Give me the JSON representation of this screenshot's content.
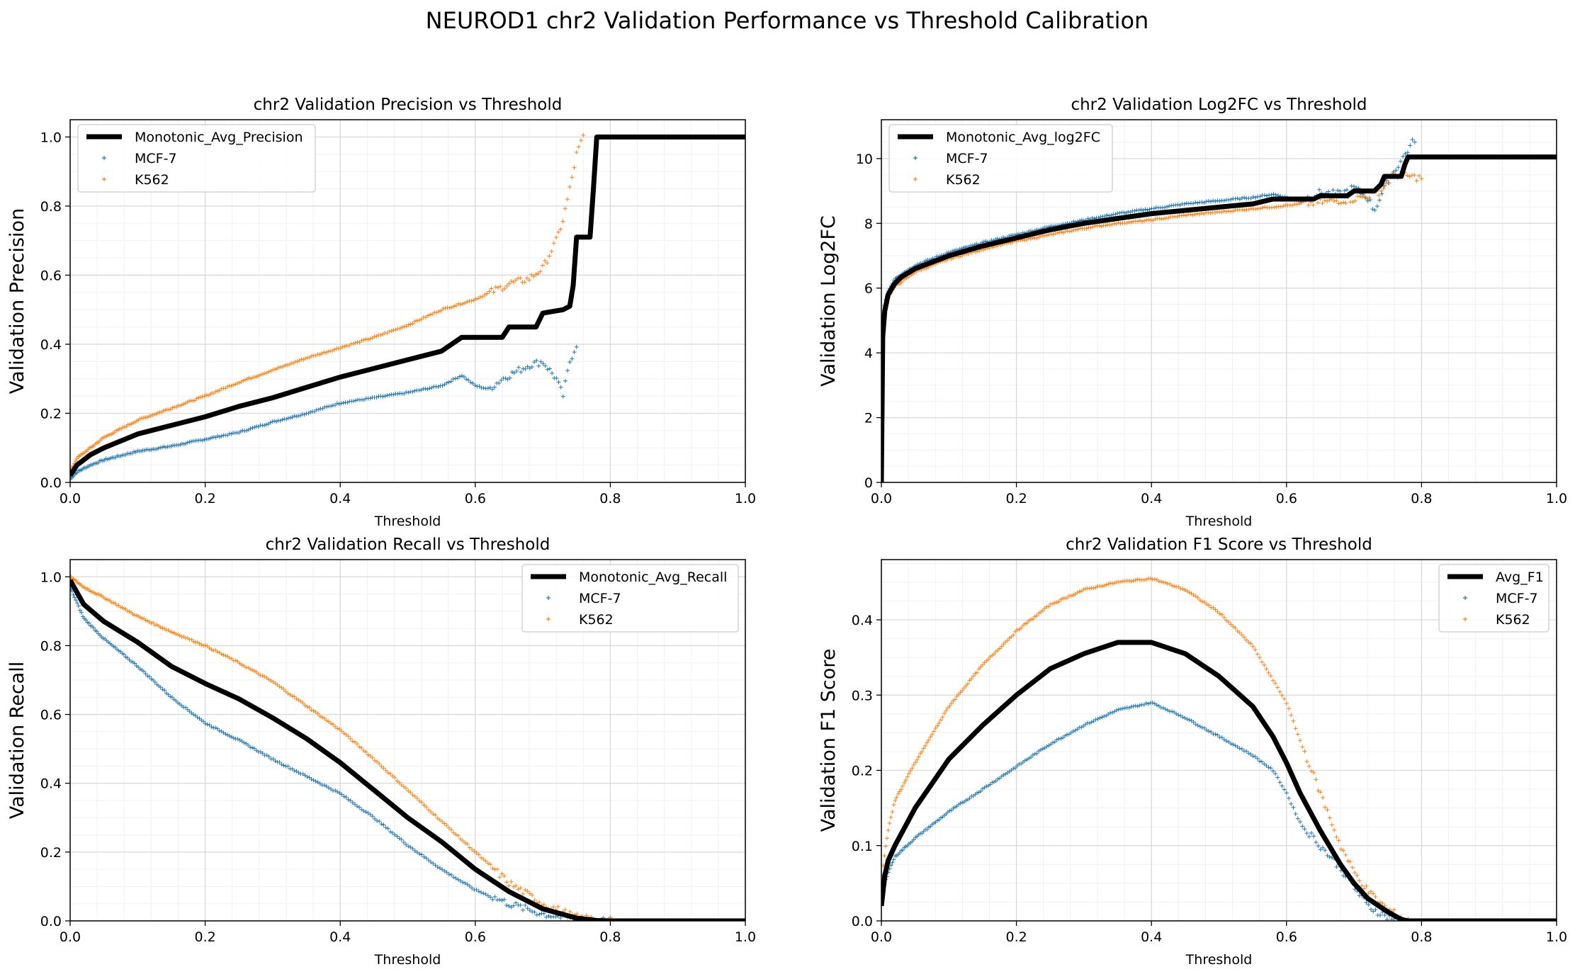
{
  "figure_title": "NEUROD1 chr2 Validation Performance vs Threshold Calibration",
  "colors": {
    "avg": "#000000",
    "MCF-7": "#1f77b4",
    "K562": "#ff7f0e",
    "grid": "#d9d9d9"
  },
  "chart_data": [
    {
      "type": "line",
      "title": "chr2 Validation Precision vs Threshold",
      "xlabel": "Threshold",
      "ylabel": "Validation Precision",
      "xlim": [
        0,
        1
      ],
      "ylim": [
        0,
        1.05
      ],
      "xticks": [
        "0.0",
        "0.2",
        "0.4",
        "0.6",
        "0.8",
        "1.0"
      ],
      "yticks": [
        "0.0",
        "0.2",
        "0.4",
        "0.6",
        "0.8",
        "1.0"
      ],
      "grid": true,
      "legend_position": "upper-left",
      "series": [
        {
          "name": "Monotonic_Avg_Precision",
          "style": "line",
          "x": [
            0,
            0.01,
            0.03,
            0.05,
            0.1,
            0.15,
            0.2,
            0.25,
            0.3,
            0.35,
            0.4,
            0.45,
            0.5,
            0.55,
            0.58,
            0.64,
            0.65,
            0.69,
            0.7,
            0.73,
            0.74,
            0.745,
            0.75,
            0.77,
            0.775,
            0.78,
            0.8,
            0.9,
            1.0
          ],
          "y": [
            0.02,
            0.05,
            0.08,
            0.1,
            0.14,
            0.165,
            0.19,
            0.22,
            0.245,
            0.275,
            0.305,
            0.33,
            0.355,
            0.38,
            0.42,
            0.42,
            0.45,
            0.45,
            0.49,
            0.5,
            0.51,
            0.57,
            0.71,
            0.71,
            0.85,
            1.0,
            1.0,
            1.0,
            1.0
          ]
        },
        {
          "name": "MCF-7",
          "style": "scatter",
          "x": [
            0,
            0.01,
            0.03,
            0.05,
            0.1,
            0.15,
            0.2,
            0.25,
            0.3,
            0.35,
            0.4,
            0.45,
            0.5,
            0.55,
            0.58,
            0.6,
            0.62,
            0.64,
            0.66,
            0.68,
            0.7,
            0.72,
            0.73,
            0.74,
            0.75
          ],
          "y": [
            0.01,
            0.03,
            0.05,
            0.065,
            0.09,
            0.105,
            0.125,
            0.145,
            0.175,
            0.2,
            0.23,
            0.245,
            0.26,
            0.28,
            0.31,
            0.28,
            0.27,
            0.3,
            0.32,
            0.34,
            0.35,
            0.3,
            0.25,
            0.35,
            0.4
          ]
        },
        {
          "name": "K562",
          "style": "scatter",
          "x": [
            0,
            0.01,
            0.03,
            0.05,
            0.1,
            0.15,
            0.2,
            0.25,
            0.3,
            0.35,
            0.4,
            0.45,
            0.5,
            0.55,
            0.6,
            0.65,
            0.68,
            0.7,
            0.71,
            0.72,
            0.73,
            0.74,
            0.745,
            0.75,
            0.76
          ],
          "y": [
            0.03,
            0.07,
            0.1,
            0.13,
            0.18,
            0.215,
            0.25,
            0.29,
            0.325,
            0.36,
            0.39,
            0.42,
            0.455,
            0.5,
            0.53,
            0.575,
            0.59,
            0.62,
            0.66,
            0.7,
            0.76,
            0.85,
            0.9,
            0.95,
            1.0
          ]
        }
      ]
    },
    {
      "type": "line",
      "title": "chr2 Validation Log2FC vs Threshold",
      "xlabel": "Threshold",
      "ylabel": "Validation Log2FC",
      "xlim": [
        0,
        1
      ],
      "ylim": [
        0,
        11.2
      ],
      "xticks": [
        "0.0",
        "0.2",
        "0.4",
        "0.6",
        "0.8",
        "1.0"
      ],
      "yticks": [
        "0",
        "2",
        "4",
        "6",
        "8",
        "10"
      ],
      "grid": true,
      "legend_position": "upper-left",
      "series": [
        {
          "name": "Monotonic_Avg_log2FC",
          "style": "line",
          "x": [
            0,
            0.002,
            0.005,
            0.01,
            0.02,
            0.03,
            0.05,
            0.1,
            0.15,
            0.2,
            0.25,
            0.3,
            0.35,
            0.4,
            0.45,
            0.5,
            0.55,
            0.58,
            0.64,
            0.65,
            0.69,
            0.7,
            0.73,
            0.74,
            0.745,
            0.75,
            0.77,
            0.775,
            0.78,
            0.9,
            1.0
          ],
          "y": [
            0,
            4.5,
            5.3,
            5.8,
            6.15,
            6.35,
            6.6,
            7.0,
            7.3,
            7.55,
            7.8,
            8.0,
            8.15,
            8.3,
            8.4,
            8.5,
            8.6,
            8.75,
            8.75,
            8.85,
            8.85,
            9.0,
            9.0,
            9.2,
            9.45,
            9.45,
            9.45,
            9.8,
            10.05,
            10.05,
            10.05
          ]
        },
        {
          "name": "MCF-7",
          "style": "scatter",
          "x": [
            0,
            0.005,
            0.01,
            0.02,
            0.05,
            0.1,
            0.15,
            0.2,
            0.25,
            0.3,
            0.35,
            0.4,
            0.45,
            0.5,
            0.55,
            0.58,
            0.6,
            0.62,
            0.65,
            0.68,
            0.7,
            0.72,
            0.73,
            0.75,
            0.79
          ],
          "y": [
            4.8,
            5.5,
            5.9,
            6.3,
            6.7,
            7.1,
            7.4,
            7.65,
            7.9,
            8.1,
            8.3,
            8.45,
            8.6,
            8.7,
            8.8,
            8.9,
            8.8,
            8.7,
            8.95,
            8.9,
            9.1,
            8.8,
            8.4,
            9.3,
            10.6
          ]
        },
        {
          "name": "K562",
          "style": "scatter",
          "x": [
            0,
            0.005,
            0.01,
            0.02,
            0.05,
            0.1,
            0.15,
            0.2,
            0.25,
            0.3,
            0.35,
            0.4,
            0.45,
            0.5,
            0.55,
            0.6,
            0.65,
            0.7,
            0.72,
            0.74,
            0.75,
            0.76,
            0.8
          ],
          "y": [
            4.3,
            5.2,
            5.7,
            6.05,
            6.5,
            6.9,
            7.2,
            7.45,
            7.65,
            7.85,
            8.0,
            8.1,
            8.25,
            8.35,
            8.45,
            8.55,
            8.65,
            8.75,
            8.85,
            9.0,
            9.3,
            9.5,
            9.4
          ]
        }
      ]
    },
    {
      "type": "line",
      "title": "chr2 Validation Recall vs Threshold",
      "xlabel": "Threshold",
      "ylabel": "Validation Recall",
      "xlim": [
        0,
        1
      ],
      "ylim": [
        0,
        1.05
      ],
      "xticks": [
        "0.0",
        "0.2",
        "0.4",
        "0.6",
        "0.8",
        "1.0"
      ],
      "yticks": [
        "0.0",
        "0.2",
        "0.4",
        "0.6",
        "0.8",
        "1.0"
      ],
      "grid": true,
      "legend_position": "upper-right",
      "series": [
        {
          "name": "Monotonic_Avg_Recall",
          "style": "line",
          "x": [
            0,
            0.02,
            0.05,
            0.1,
            0.15,
            0.2,
            0.25,
            0.3,
            0.35,
            0.4,
            0.45,
            0.5,
            0.55,
            0.6,
            0.65,
            0.7,
            0.75,
            0.78,
            0.8,
            1.0
          ],
          "y": [
            0.99,
            0.92,
            0.87,
            0.81,
            0.74,
            0.69,
            0.645,
            0.59,
            0.53,
            0.46,
            0.38,
            0.3,
            0.23,
            0.15,
            0.085,
            0.035,
            0.008,
            0.001,
            0,
            0
          ]
        },
        {
          "name": "MCF-7",
          "style": "scatter",
          "x": [
            0,
            0.02,
            0.05,
            0.1,
            0.15,
            0.2,
            0.25,
            0.3,
            0.35,
            0.4,
            0.45,
            0.5,
            0.55,
            0.6,
            0.65,
            0.7,
            0.75,
            0.8
          ],
          "y": [
            0.97,
            0.88,
            0.82,
            0.74,
            0.65,
            0.575,
            0.525,
            0.47,
            0.42,
            0.37,
            0.3,
            0.22,
            0.15,
            0.09,
            0.05,
            0.02,
            0.005,
            0
          ]
        },
        {
          "name": "K562",
          "style": "scatter",
          "x": [
            0,
            0.02,
            0.05,
            0.1,
            0.15,
            0.2,
            0.25,
            0.3,
            0.35,
            0.4,
            0.45,
            0.5,
            0.55,
            0.6,
            0.65,
            0.7,
            0.75,
            0.8
          ],
          "y": [
            1.0,
            0.97,
            0.94,
            0.885,
            0.84,
            0.8,
            0.75,
            0.695,
            0.625,
            0.555,
            0.47,
            0.38,
            0.29,
            0.2,
            0.11,
            0.05,
            0.01,
            0
          ]
        }
      ]
    },
    {
      "type": "line",
      "title": "chr2 Validation F1 Score vs Threshold",
      "xlabel": "Threshold",
      "ylabel": "Validation F1 Score",
      "xlim": [
        0,
        1
      ],
      "ylim": [
        0,
        0.48
      ],
      "xticks": [
        "0.0",
        "0.2",
        "0.4",
        "0.6",
        "0.8",
        "1.0"
      ],
      "yticks": [
        "0.0",
        "0.1",
        "0.2",
        "0.3",
        "0.4"
      ],
      "grid": true,
      "legend_position": "upper-right",
      "series": [
        {
          "name": "Avg_F1",
          "style": "line",
          "x": [
            0,
            0.005,
            0.01,
            0.02,
            0.05,
            0.1,
            0.15,
            0.2,
            0.25,
            0.3,
            0.35,
            0.4,
            0.45,
            0.5,
            0.55,
            0.58,
            0.6,
            0.62,
            0.65,
            0.68,
            0.7,
            0.72,
            0.75,
            0.77,
            0.78,
            0.8,
            1.0
          ],
          "y": [
            0.02,
            0.06,
            0.08,
            0.1,
            0.15,
            0.215,
            0.26,
            0.3,
            0.335,
            0.355,
            0.37,
            0.37,
            0.355,
            0.325,
            0.285,
            0.245,
            0.21,
            0.17,
            0.12,
            0.075,
            0.05,
            0.03,
            0.012,
            0.002,
            0,
            0,
            0
          ]
        },
        {
          "name": "MCF-7",
          "style": "scatter",
          "x": [
            0,
            0.005,
            0.01,
            0.02,
            0.05,
            0.1,
            0.15,
            0.2,
            0.25,
            0.3,
            0.35,
            0.4,
            0.45,
            0.5,
            0.55,
            0.58,
            0.6,
            0.62,
            0.65,
            0.68,
            0.7,
            0.72,
            0.75,
            0.78
          ],
          "y": [
            0.02,
            0.05,
            0.065,
            0.085,
            0.11,
            0.145,
            0.175,
            0.205,
            0.235,
            0.26,
            0.28,
            0.29,
            0.27,
            0.245,
            0.22,
            0.2,
            0.17,
            0.13,
            0.1,
            0.07,
            0.045,
            0.02,
            0.005,
            0
          ]
        },
        {
          "name": "K562",
          "style": "scatter",
          "x": [
            0,
            0.005,
            0.01,
            0.02,
            0.05,
            0.1,
            0.15,
            0.2,
            0.25,
            0.3,
            0.35,
            0.4,
            0.45,
            0.5,
            0.55,
            0.6,
            0.62,
            0.65,
            0.68,
            0.7,
            0.72,
            0.75,
            0.77,
            0.78
          ],
          "y": [
            0.05,
            0.09,
            0.12,
            0.16,
            0.21,
            0.285,
            0.34,
            0.385,
            0.42,
            0.44,
            0.45,
            0.455,
            0.44,
            0.41,
            0.365,
            0.29,
            0.24,
            0.17,
            0.1,
            0.065,
            0.04,
            0.015,
            0.005,
            0
          ]
        }
      ]
    }
  ]
}
